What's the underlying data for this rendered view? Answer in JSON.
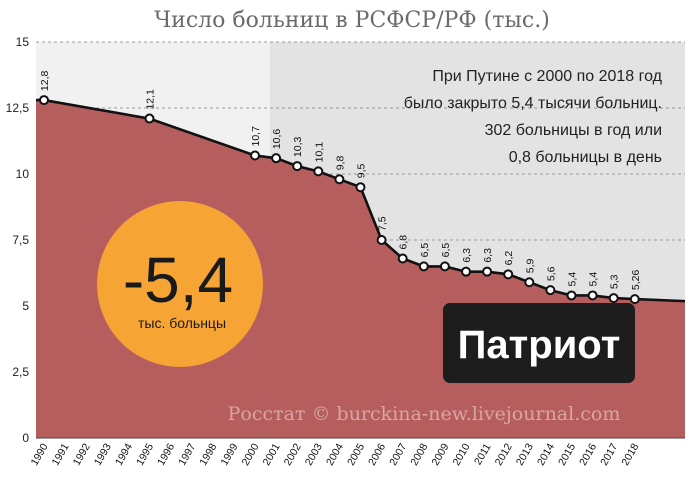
{
  "chart_data": {
    "type": "area",
    "title": "Число больниц в РСФСР/РФ (тыс.)",
    "xlabel": "",
    "ylabel": "",
    "ylim": [
      0,
      15
    ],
    "yticks": [
      "0",
      "2,5",
      "5",
      "7,5",
      "10",
      "12,5",
      "15"
    ],
    "x": [
      "1990",
      "1991",
      "1992",
      "1993",
      "1994",
      "1995",
      "1996",
      "1997",
      "1998",
      "1999",
      "2000",
      "2001",
      "2002",
      "2003",
      "2004",
      "2005",
      "2006",
      "2007",
      "2008",
      "2009",
      "2010",
      "2011",
      "2012",
      "2013",
      "2014",
      "2015",
      "2016",
      "2017",
      "2018"
    ],
    "points": [
      {
        "x": "1990",
        "y": 12.8,
        "label": "12,8"
      },
      {
        "x": "1995",
        "y": 12.1,
        "label": "12,1"
      },
      {
        "x": "2000",
        "y": 10.7,
        "label": "10,7"
      },
      {
        "x": "2001",
        "y": 10.6,
        "label": "10,6"
      },
      {
        "x": "2002",
        "y": 10.3,
        "label": "10,3"
      },
      {
        "x": "2003",
        "y": 10.1,
        "label": "10,1"
      },
      {
        "x": "2004",
        "y": 9.8,
        "label": "9,8"
      },
      {
        "x": "2005",
        "y": 9.5,
        "label": "9,5"
      },
      {
        "x": "2006",
        "y": 7.5,
        "label": "7,5"
      },
      {
        "x": "2007",
        "y": 6.8,
        "label": "6,8"
      },
      {
        "x": "2008",
        "y": 6.5,
        "label": "6,5"
      },
      {
        "x": "2009",
        "y": 6.5,
        "label": "6,5"
      },
      {
        "x": "2010",
        "y": 6.3,
        "label": "6,3"
      },
      {
        "x": "2011",
        "y": 6.3,
        "label": "6,3"
      },
      {
        "x": "2012",
        "y": 6.2,
        "label": "6,2"
      },
      {
        "x": "2013",
        "y": 5.9,
        "label": "5,9"
      },
      {
        "x": "2014",
        "y": 5.6,
        "label": "5,6"
      },
      {
        "x": "2015",
        "y": 5.4,
        "label": "5,4"
      },
      {
        "x": "2016",
        "y": 5.4,
        "label": "5,4"
      },
      {
        "x": "2017",
        "y": 5.3,
        "label": "5,3"
      },
      {
        "x": "2018",
        "y": 5.26,
        "label": "5,26"
      }
    ],
    "grid": true,
    "annotation_lines": [
      "При Путине с 2000 по 2018 год",
      "было закрыто 5,4 тысячи больниц.",
      "302 больницы в год или",
      "0,8 больницы в день"
    ],
    "badge": {
      "value": "-5,4",
      "caption": "тыс. больнцы"
    },
    "tag": "Патриот",
    "watermark": "Росстат © burckina-new.livejournal.com",
    "colors": {
      "area": "#b65e5e",
      "line": "#111111",
      "shade_pre2000": "#f1f1f1",
      "shade_post2000": "#e3e3e3",
      "badge": "#f6a534",
      "tag_bg": "#1d1d1d",
      "tag_text": "#ffffff"
    }
  }
}
